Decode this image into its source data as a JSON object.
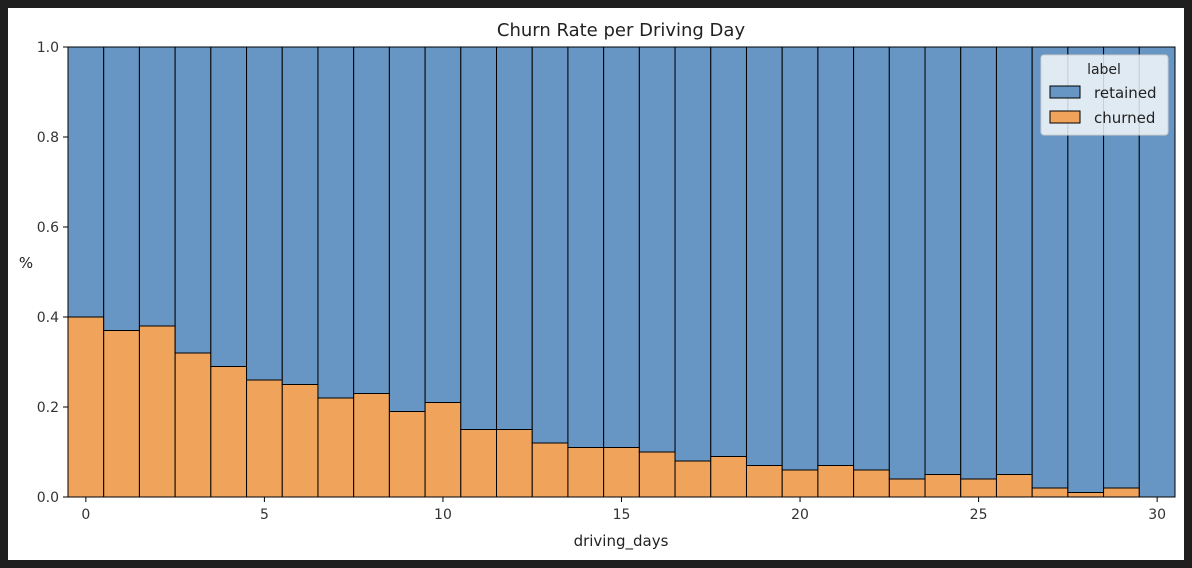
{
  "chart_data": {
    "type": "bar",
    "stacked": true,
    "normalized": true,
    "title": "Churn Rate per Driving Day",
    "xlabel": "driving_days",
    "ylabel": "%",
    "xlim": [
      -0.5,
      30.5
    ],
    "ylim": [
      0,
      1
    ],
    "xticks": [
      0,
      5,
      10,
      15,
      20,
      25,
      30
    ],
    "yticks": [
      "0.0",
      "0.2",
      "0.4",
      "0.6",
      "0.8",
      "1.0"
    ],
    "legend": {
      "title": "label",
      "placement": "top-right",
      "entries": [
        {
          "name": "retained",
          "color": "#6796C4"
        },
        {
          "name": "churned",
          "color": "#F0A35B"
        }
      ]
    },
    "grid": false,
    "x": [
      0,
      1,
      2,
      3,
      4,
      5,
      6,
      7,
      8,
      9,
      10,
      11,
      12,
      13,
      14,
      15,
      16,
      17,
      18,
      19,
      20,
      21,
      22,
      23,
      24,
      25,
      26,
      27,
      28,
      29,
      30
    ],
    "series": [
      {
        "name": "churned",
        "values": [
          0.4,
          0.37,
          0.38,
          0.32,
          0.29,
          0.26,
          0.25,
          0.22,
          0.23,
          0.19,
          0.21,
          0.15,
          0.15,
          0.12,
          0.11,
          0.11,
          0.1,
          0.08,
          0.09,
          0.07,
          0.06,
          0.07,
          0.06,
          0.04,
          0.05,
          0.04,
          0.05,
          0.02,
          0.01,
          0.02,
          0.0
        ]
      },
      {
        "name": "retained",
        "values": [
          0.6,
          0.63,
          0.62,
          0.68,
          0.71,
          0.74,
          0.75,
          0.78,
          0.77,
          0.81,
          0.79,
          0.85,
          0.85,
          0.88,
          0.89,
          0.89,
          0.9,
          0.92,
          0.91,
          0.93,
          0.94,
          0.93,
          0.94,
          0.96,
          0.95,
          0.96,
          0.95,
          0.98,
          0.99,
          0.98,
          1.0
        ]
      }
    ]
  }
}
